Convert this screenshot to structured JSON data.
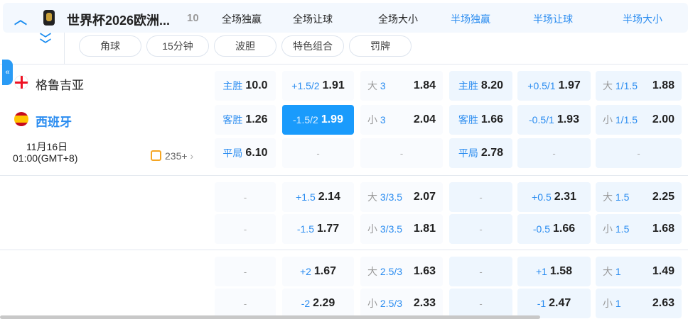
{
  "header": {
    "title": "世界杯2026欧洲...",
    "count": "10",
    "columns": [
      "全场独赢",
      "全场让球",
      "全场大小",
      "半场独赢",
      "半场让球",
      "半场大小"
    ]
  },
  "filters": [
    "角球",
    "15分钟",
    "波胆",
    "特色组合",
    "罚牌"
  ],
  "match": {
    "home": "格鲁吉亚",
    "away": "西班牙",
    "date": "11月16日",
    "time": "01:00(GMT+8)",
    "more": "235+"
  },
  "blocks": [
    [
      [
        [
          "主胜",
          "10.0"
        ],
        [
          "+1.5/2",
          "1.91"
        ],
        [
          "大 ",
          "3",
          "1.84"
        ],
        [
          "主胜",
          "8.20"
        ],
        [
          "+0.5/1",
          "1.97"
        ],
        [
          "大 ",
          "1/1.5",
          "1.88"
        ]
      ],
      [
        [
          "客胜",
          "1.26"
        ],
        [
          "-1.5/2",
          "1.99"
        ],
        [
          "小 ",
          "3",
          "2.04"
        ],
        [
          "客胜",
          "1.66"
        ],
        [
          "-0.5/1",
          "1.93"
        ],
        [
          "小 ",
          "1/1.5",
          "2.00"
        ]
      ],
      [
        [
          "平局",
          "6.10"
        ],
        [
          "-"
        ],
        [
          "-"
        ],
        [
          "平局",
          "2.78"
        ],
        [
          "-"
        ],
        [
          "-"
        ]
      ]
    ],
    [
      [
        [
          "-"
        ],
        [
          "+1.5",
          "2.14"
        ],
        [
          "大 ",
          "3/3.5",
          "2.07"
        ],
        [
          "-"
        ],
        [
          "+0.5",
          "2.31"
        ],
        [
          "大 ",
          "1.5",
          "2.25"
        ]
      ],
      [
        [
          "-"
        ],
        [
          "-1.5",
          "1.77"
        ],
        [
          "小 ",
          "3/3.5",
          "1.81"
        ],
        [
          "-"
        ],
        [
          "-0.5",
          "1.66"
        ],
        [
          "小 ",
          "1.5",
          "1.68"
        ]
      ]
    ],
    [
      [
        [
          "-"
        ],
        [
          "+2",
          "1.67"
        ],
        [
          "大 ",
          "2.5/3",
          "1.63"
        ],
        [
          "-"
        ],
        [
          "+1",
          "1.58"
        ],
        [
          "大 ",
          "1",
          "1.49"
        ]
      ],
      [
        [
          "-"
        ],
        [
          "-2",
          "2.29"
        ],
        [
          "小 ",
          "2.5/3",
          "2.33"
        ],
        [
          "-"
        ],
        [
          "-1",
          "2.47"
        ],
        [
          "小 ",
          "1",
          "2.63"
        ]
      ]
    ]
  ],
  "selected": "-1.5/2 1.99",
  "colors": {
    "accent": "#1a9bfc",
    "label": "#2a8cf0"
  }
}
